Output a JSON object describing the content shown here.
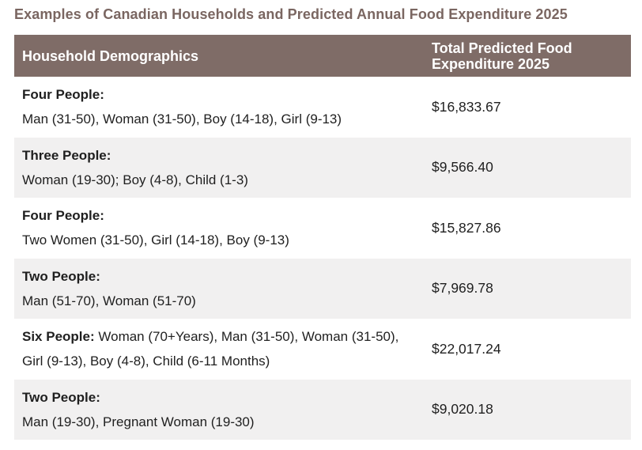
{
  "title": "Examples of Canadian Households and Predicted Annual Food Expenditure 2025",
  "table": {
    "headers": {
      "demographics": "Household Demographics",
      "expenditure_line1": "Total Predicted Food",
      "expenditure_line2": "Expenditure 2025"
    },
    "rows": [
      {
        "label": "Four People:",
        "members": "Man (31-50), Woman (31-50), Boy (14-18), Girl (9-13)",
        "amount": "$16,833.67"
      },
      {
        "label": "Three People:",
        "members": "Woman (19-30); Boy (4-8), Child (1-3)",
        "amount": "$9,566.40"
      },
      {
        "label": "Four People:",
        "members": "Two Women (31-50), Girl (14-18), Boy (9-13)",
        "amount": "$15,827.86"
      },
      {
        "label": "Two People:",
        "members": "Man (51-70), Woman (51-70)",
        "amount": "$7,969.78"
      },
      {
        "label": "Six People:",
        "members": "Woman (70+Years), Man (31-50), Woman (31-50), Girl (9-13), Boy (4-8), Child (6-11 Months)",
        "amount": "$22,017.24"
      },
      {
        "label": "Two People:",
        "members": "Man (19-30), Pregnant Woman (19-30)",
        "amount": "$9,020.18"
      }
    ]
  }
}
